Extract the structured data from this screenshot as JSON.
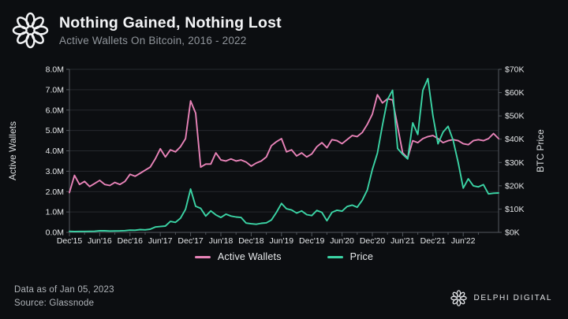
{
  "header": {
    "title": "Nothing Gained, Nothing Lost",
    "subtitle": "Active Wallets On Bitcoin, 2016 - 2022"
  },
  "footer": {
    "data_as_of": "Data as of Jan 05, 2023",
    "source": "Source: Glassnode",
    "wordmark": "DELPHI DIGITAL"
  },
  "colors": {
    "background": "#0c0e11",
    "title_text": "#f3f4f6",
    "subtitle_text": "#90959b",
    "tick_text": "#e4e6e8",
    "axis_title_text": "#d9dcde",
    "gridline": "#26292e",
    "axis_line": "#53585f",
    "active_wallets_pink": "#e883b8",
    "price_teal": "#3bd4a5",
    "footer_text": "#b0b4b9"
  },
  "icons": {
    "header_logo": "delphi-knot-logo",
    "footer_logo": "delphi-knot-logo"
  },
  "chart_data": {
    "type": "line",
    "title": "Nothing Gained, Nothing Lost",
    "subtitle": "Active Wallets On Bitcoin, 2016 - 2022",
    "grid": true,
    "legend_position": "bottom",
    "x_start": "Dec 2015",
    "x_end": "Jan 2023",
    "x_resolution": "monthly estimates read from plot",
    "x_tick_labels": [
      "Dec'15",
      "Jun'16",
      "Dec'16",
      "Jun'17",
      "Dec'17",
      "Jun'18",
      "Dec'18",
      "Jun'19",
      "Dec'19",
      "Jun'20",
      "Dec'20",
      "Jun'21",
      "Dec'21",
      "Jun'22"
    ],
    "x_tick_month_index": [
      0,
      6,
      12,
      18,
      24,
      30,
      36,
      42,
      48,
      54,
      60,
      66,
      72,
      78
    ],
    "left_axis": {
      "label": "Active Wallets",
      "unit": "millions",
      "range": [
        0,
        8
      ],
      "ticks": [
        "0.0M",
        "1.0M",
        "2.0M",
        "3.0M",
        "4.0M",
        "5.0M",
        "6.0M",
        "7.0M",
        "8.0M"
      ]
    },
    "right_axis": {
      "label": "BTC Price",
      "unit": "USD thousands",
      "range": [
        0,
        70
      ],
      "ticks": [
        "$0K",
        "$10K",
        "$20K",
        "$30K",
        "$40K",
        "$50K",
        "$60K",
        "$70K"
      ]
    },
    "series": [
      {
        "name": "Active Wallets",
        "axis": "left",
        "color": "#e883b8",
        "values": [
          1.95,
          2.8,
          2.35,
          2.5,
          2.25,
          2.4,
          2.55,
          2.35,
          2.3,
          2.45,
          2.35,
          2.5,
          2.85,
          2.75,
          2.9,
          3.05,
          3.2,
          3.6,
          4.1,
          3.7,
          4.05,
          3.95,
          4.2,
          4.6,
          6.45,
          5.85,
          3.2,
          3.35,
          3.35,
          3.9,
          3.55,
          3.5,
          3.6,
          3.5,
          3.55,
          3.45,
          3.25,
          3.4,
          3.5,
          3.7,
          4.25,
          4.45,
          4.6,
          3.95,
          4.05,
          3.75,
          3.9,
          3.7,
          3.85,
          4.2,
          4.4,
          4.15,
          4.55,
          4.5,
          4.35,
          4.55,
          4.75,
          4.7,
          4.9,
          5.3,
          5.8,
          6.75,
          6.35,
          6.55,
          6.5,
          5.2,
          3.9,
          3.65,
          4.5,
          4.4,
          4.6,
          4.7,
          4.75,
          4.6,
          4.4,
          4.5,
          4.55,
          4.5,
          4.35,
          4.3,
          4.5,
          4.55,
          4.5,
          4.6,
          4.85,
          4.6
        ]
      },
      {
        "name": "Price",
        "axis": "right",
        "color": "#3bd4a5",
        "values": [
          0.43,
          0.38,
          0.42,
          0.42,
          0.45,
          0.47,
          0.67,
          0.66,
          0.58,
          0.61,
          0.64,
          0.74,
          0.96,
          0.92,
          1.19,
          1.08,
          1.35,
          2.3,
          2.5,
          2.7,
          4.7,
          4.3,
          6.1,
          9.9,
          18.6,
          11.2,
          10.3,
          7.0,
          9.2,
          7.5,
          6.4,
          7.8,
          7.0,
          6.6,
          6.4,
          4.0,
          3.7,
          3.5,
          3.9,
          4.1,
          5.3,
          8.6,
          12.4,
          10.1,
          9.6,
          8.3,
          9.2,
          7.6,
          7.2,
          9.4,
          8.6,
          5.0,
          8.6,
          9.5,
          9.1,
          11.1,
          11.7,
          10.8,
          13.8,
          18.2,
          27.0,
          34.0,
          46.0,
          57.0,
          61.0,
          36.0,
          33.5,
          31.5,
          47.0,
          42.0,
          61.0,
          66.0,
          50.0,
          38.0,
          43.0,
          45.5,
          39.5,
          30.0,
          19.0,
          23.0,
          20.0,
          19.5,
          20.5,
          16.5,
          16.8,
          16.9
        ]
      }
    ]
  }
}
